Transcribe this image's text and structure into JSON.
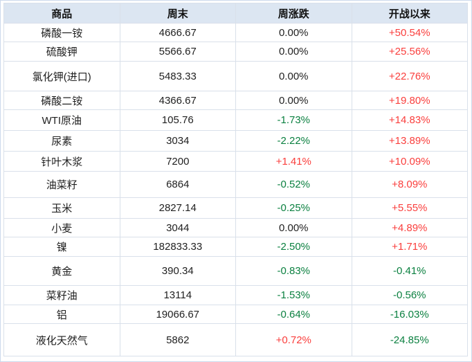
{
  "chart_data": {
    "type": "table",
    "columns": [
      "商品",
      "周末",
      "周涨跌",
      "开战以来"
    ],
    "rows": [
      [
        "磷酸一铵",
        "4666.67",
        "0.00%",
        "+50.54%"
      ],
      [
        "硫酸钾",
        "5566.67",
        "0.00%",
        "+25.56%"
      ],
      [
        "氯化钾(进口)",
        "5483.33",
        "0.00%",
        "+22.76%"
      ],
      [
        "磷酸二铵",
        "4366.67",
        "0.00%",
        "+19.80%"
      ],
      [
        "WTI原油",
        "105.76",
        "-1.73%",
        "+14.83%"
      ],
      [
        "尿素",
        "3034",
        "-2.22%",
        "+13.89%"
      ],
      [
        "针叶木浆",
        "7200",
        "+1.41%",
        "+10.09%"
      ],
      [
        "油菜籽",
        "6864",
        "-0.52%",
        "+8.09%"
      ],
      [
        "玉米",
        "2827.14",
        "-0.25%",
        "+5.55%"
      ],
      [
        "小麦",
        "3044",
        "0.00%",
        "+4.89%"
      ],
      [
        "镍",
        "182833.33",
        "-2.50%",
        "+1.71%"
      ],
      [
        "黄金",
        "390.34",
        "-0.83%",
        "-0.41%"
      ],
      [
        "菜籽油",
        "13114",
        "-1.53%",
        "-0.56%"
      ],
      [
        "铝",
        "19066.67",
        "-0.64%",
        "-16.03%"
      ],
      [
        "液化天然气",
        "5862",
        "+0.72%",
        "-24.85%"
      ]
    ]
  },
  "colors": {
    "up": "#fa3e3c",
    "down": "#0b8040",
    "flat": "#1f1f1f",
    "header_bg": "#dce6f2",
    "grid": "#d9e0ea",
    "outer_border": "#ccd9ec"
  }
}
